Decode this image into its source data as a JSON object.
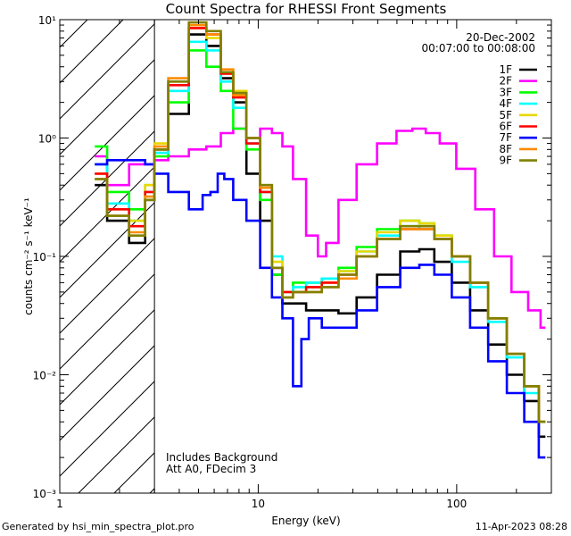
{
  "footer": {
    "generated_by": "Generated by hsi_min_spectra_plot.pro",
    "timestamp": "11-Apr-2023 08:28"
  },
  "chart_data": {
    "type": "line",
    "title": "Count Spectra for RHESSI Front Segments",
    "xlabel": "Energy (keV)",
    "ylabel": "counts cm⁻² s⁻¹ keV⁻¹",
    "xscale": "log",
    "yscale": "log",
    "xlim": [
      1,
      300
    ],
    "ylim": [
      0.001,
      10
    ],
    "x_ticks": [
      {
        "value": 1,
        "label": "1"
      },
      {
        "value": 10,
        "label": "10"
      },
      {
        "value": 100,
        "label": "100"
      }
    ],
    "y_ticks": [
      {
        "value": 0.001,
        "label": "10⁻³"
      },
      {
        "value": 0.01,
        "label": "10⁻²"
      },
      {
        "value": 0.1,
        "label": "10⁻¹"
      },
      {
        "value": 1,
        "label": "10⁰"
      },
      {
        "value": 10,
        "label": "10¹"
      }
    ],
    "date": "20-Dec-2002",
    "time_range": "00:07:00 to 00:08:00",
    "annotations": [
      "Includes Background",
      "Att A0, FDecim 3"
    ],
    "hatched_region_keV": [
      1,
      3
    ],
    "series": [
      {
        "name": "1F",
        "color": "#000000",
        "x": [
          1.5,
          2,
          2.5,
          2.9,
          3.1,
          4,
          5,
          6,
          7,
          8,
          9.5,
          11,
          12.5,
          14,
          16,
          19,
          23,
          28,
          35,
          45,
          60,
          70,
          85,
          105,
          130,
          160,
          200,
          240,
          280
        ],
        "y": [
          0.4,
          0.2,
          0.13,
          0.3,
          0.8,
          1.6,
          7.5,
          6.0,
          3.2,
          2.0,
          0.5,
          0.2,
          0.07,
          0.04,
          0.04,
          0.035,
          0.035,
          0.033,
          0.045,
          0.07,
          0.11,
          0.115,
          0.09,
          0.06,
          0.035,
          0.018,
          0.01,
          0.006,
          0.003
        ]
      },
      {
        "name": "2F",
        "color": "#ff00ff",
        "x": [
          1.5,
          2,
          2.5,
          2.9,
          3.1,
          4,
          5,
          6,
          7,
          8,
          9.5,
          11,
          12.5,
          14,
          16,
          19,
          21,
          23,
          28,
          35,
          45,
          55,
          65,
          75,
          90,
          110,
          140,
          170,
          210,
          250,
          280
        ],
        "y": [
          0.7,
          0.4,
          0.6,
          0.6,
          0.65,
          0.7,
          0.8,
          0.85,
          1.1,
          1.2,
          1.0,
          1.2,
          1.1,
          0.85,
          0.45,
          0.15,
          0.1,
          0.13,
          0.3,
          0.6,
          0.9,
          1.15,
          1.2,
          1.1,
          0.9,
          0.55,
          0.25,
          0.1,
          0.05,
          0.035,
          0.025
        ]
      },
      {
        "name": "3F",
        "color": "#00ff00",
        "x": [
          1.5,
          2,
          2.5,
          2.9,
          3.1,
          4,
          5,
          6,
          7,
          8,
          9.5,
          11,
          12.5,
          14,
          16,
          19,
          23,
          28,
          35,
          45,
          60,
          70,
          85,
          105,
          130,
          160,
          200,
          240,
          280
        ],
        "y": [
          0.85,
          0.35,
          0.25,
          0.4,
          0.7,
          2.0,
          5.5,
          4.0,
          2.5,
          1.2,
          0.8,
          0.3,
          0.07,
          0.05,
          0.06,
          0.06,
          0.065,
          0.08,
          0.12,
          0.17,
          0.2,
          0.19,
          0.15,
          0.1,
          0.06,
          0.03,
          0.015,
          0.008,
          0.004
        ]
      },
      {
        "name": "4F",
        "color": "#00ffff",
        "x": [
          1.5,
          2,
          2.5,
          2.9,
          3.1,
          4,
          5,
          6,
          7,
          8,
          9.5,
          11,
          12.5,
          14,
          16,
          19,
          23,
          28,
          35,
          45,
          60,
          70,
          85,
          105,
          130,
          160,
          200,
          240,
          280
        ],
        "y": [
          0.6,
          0.28,
          0.2,
          0.35,
          0.75,
          2.5,
          6.5,
          5.5,
          3.0,
          1.8,
          0.9,
          0.35,
          0.1,
          0.05,
          0.055,
          0.06,
          0.065,
          0.075,
          0.11,
          0.15,
          0.18,
          0.17,
          0.14,
          0.09,
          0.055,
          0.028,
          0.014,
          0.007,
          0.004
        ]
      },
      {
        "name": "5F",
        "color": "#e8d800",
        "x": [
          1.5,
          2,
          2.5,
          2.9,
          3.1,
          4,
          5,
          6,
          7,
          8,
          9.5,
          11,
          12.5,
          14,
          16,
          19,
          23,
          28,
          35,
          45,
          60,
          70,
          85,
          105,
          130,
          160,
          200,
          240,
          280
        ],
        "y": [
          0.5,
          0.25,
          0.2,
          0.4,
          0.9,
          3.0,
          8.5,
          7.0,
          3.5,
          2.5,
          1.0,
          0.4,
          0.09,
          0.05,
          0.05,
          0.055,
          0.06,
          0.075,
          0.11,
          0.16,
          0.2,
          0.19,
          0.15,
          0.1,
          0.06,
          0.03,
          0.015,
          0.008,
          0.004
        ]
      },
      {
        "name": "6F",
        "color": "#ff0000",
        "x": [
          1.5,
          2,
          2.5,
          2.9,
          3.1,
          4,
          5,
          6,
          7,
          8,
          9.5,
          11,
          12.5,
          14,
          16,
          19,
          23,
          28,
          35,
          45,
          60,
          70,
          85,
          105,
          130,
          160,
          200,
          240,
          280
        ],
        "y": [
          0.5,
          0.25,
          0.18,
          0.35,
          0.8,
          2.8,
          8.5,
          7.5,
          3.5,
          2.2,
          0.9,
          0.35,
          0.08,
          0.05,
          0.05,
          0.055,
          0.06,
          0.07,
          0.1,
          0.14,
          0.17,
          0.17,
          0.14,
          0.1,
          0.06,
          0.03,
          0.015,
          0.008,
          0.004
        ]
      },
      {
        "name": "7F",
        "color": "#0000ff",
        "x": [
          1.5,
          2,
          2.5,
          2.9,
          3.1,
          4,
          5,
          5.5,
          6,
          6.5,
          7,
          8,
          9.5,
          11,
          12.5,
          14,
          16,
          17,
          19,
          23,
          28,
          35,
          45,
          60,
          70,
          85,
          105,
          130,
          160,
          200,
          240,
          280
        ],
        "y": [
          0.6,
          0.65,
          0.65,
          0.6,
          0.5,
          0.35,
          0.25,
          0.33,
          0.35,
          0.5,
          0.45,
          0.3,
          0.2,
          0.08,
          0.045,
          0.03,
          0.008,
          0.02,
          0.03,
          0.025,
          0.025,
          0.035,
          0.055,
          0.08,
          0.085,
          0.07,
          0.045,
          0.025,
          0.013,
          0.007,
          0.004,
          0.002
        ]
      },
      {
        "name": "8F",
        "color": "#ff8c00",
        "x": [
          1.5,
          2,
          2.5,
          2.9,
          3.1,
          4,
          5,
          6,
          7,
          8,
          9.5,
          11,
          12.5,
          14,
          16,
          19,
          23,
          28,
          35,
          45,
          60,
          70,
          85,
          105,
          130,
          160,
          200,
          240,
          280
        ],
        "y": [
          0.45,
          0.22,
          0.16,
          0.32,
          0.85,
          3.2,
          9.0,
          7.5,
          3.8,
          2.3,
          1.0,
          0.38,
          0.08,
          0.045,
          0.05,
          0.05,
          0.055,
          0.065,
          0.1,
          0.14,
          0.17,
          0.17,
          0.14,
          0.1,
          0.06,
          0.03,
          0.015,
          0.008,
          0.004
        ]
      },
      {
        "name": "9F",
        "color": "#808000",
        "x": [
          1.5,
          2,
          2.5,
          2.9,
          3.1,
          4,
          5,
          6,
          7,
          8,
          9.5,
          11,
          12.5,
          14,
          16,
          19,
          23,
          28,
          35,
          45,
          60,
          70,
          85,
          105,
          130,
          160,
          200,
          240,
          280
        ],
        "y": [
          0.45,
          0.22,
          0.15,
          0.3,
          0.8,
          3.0,
          9.5,
          8.0,
          3.6,
          2.4,
          1.0,
          0.4,
          0.08,
          0.045,
          0.05,
          0.05,
          0.055,
          0.07,
          0.1,
          0.14,
          0.18,
          0.18,
          0.14,
          0.1,
          0.06,
          0.03,
          0.015,
          0.008,
          0.004
        ]
      }
    ]
  }
}
